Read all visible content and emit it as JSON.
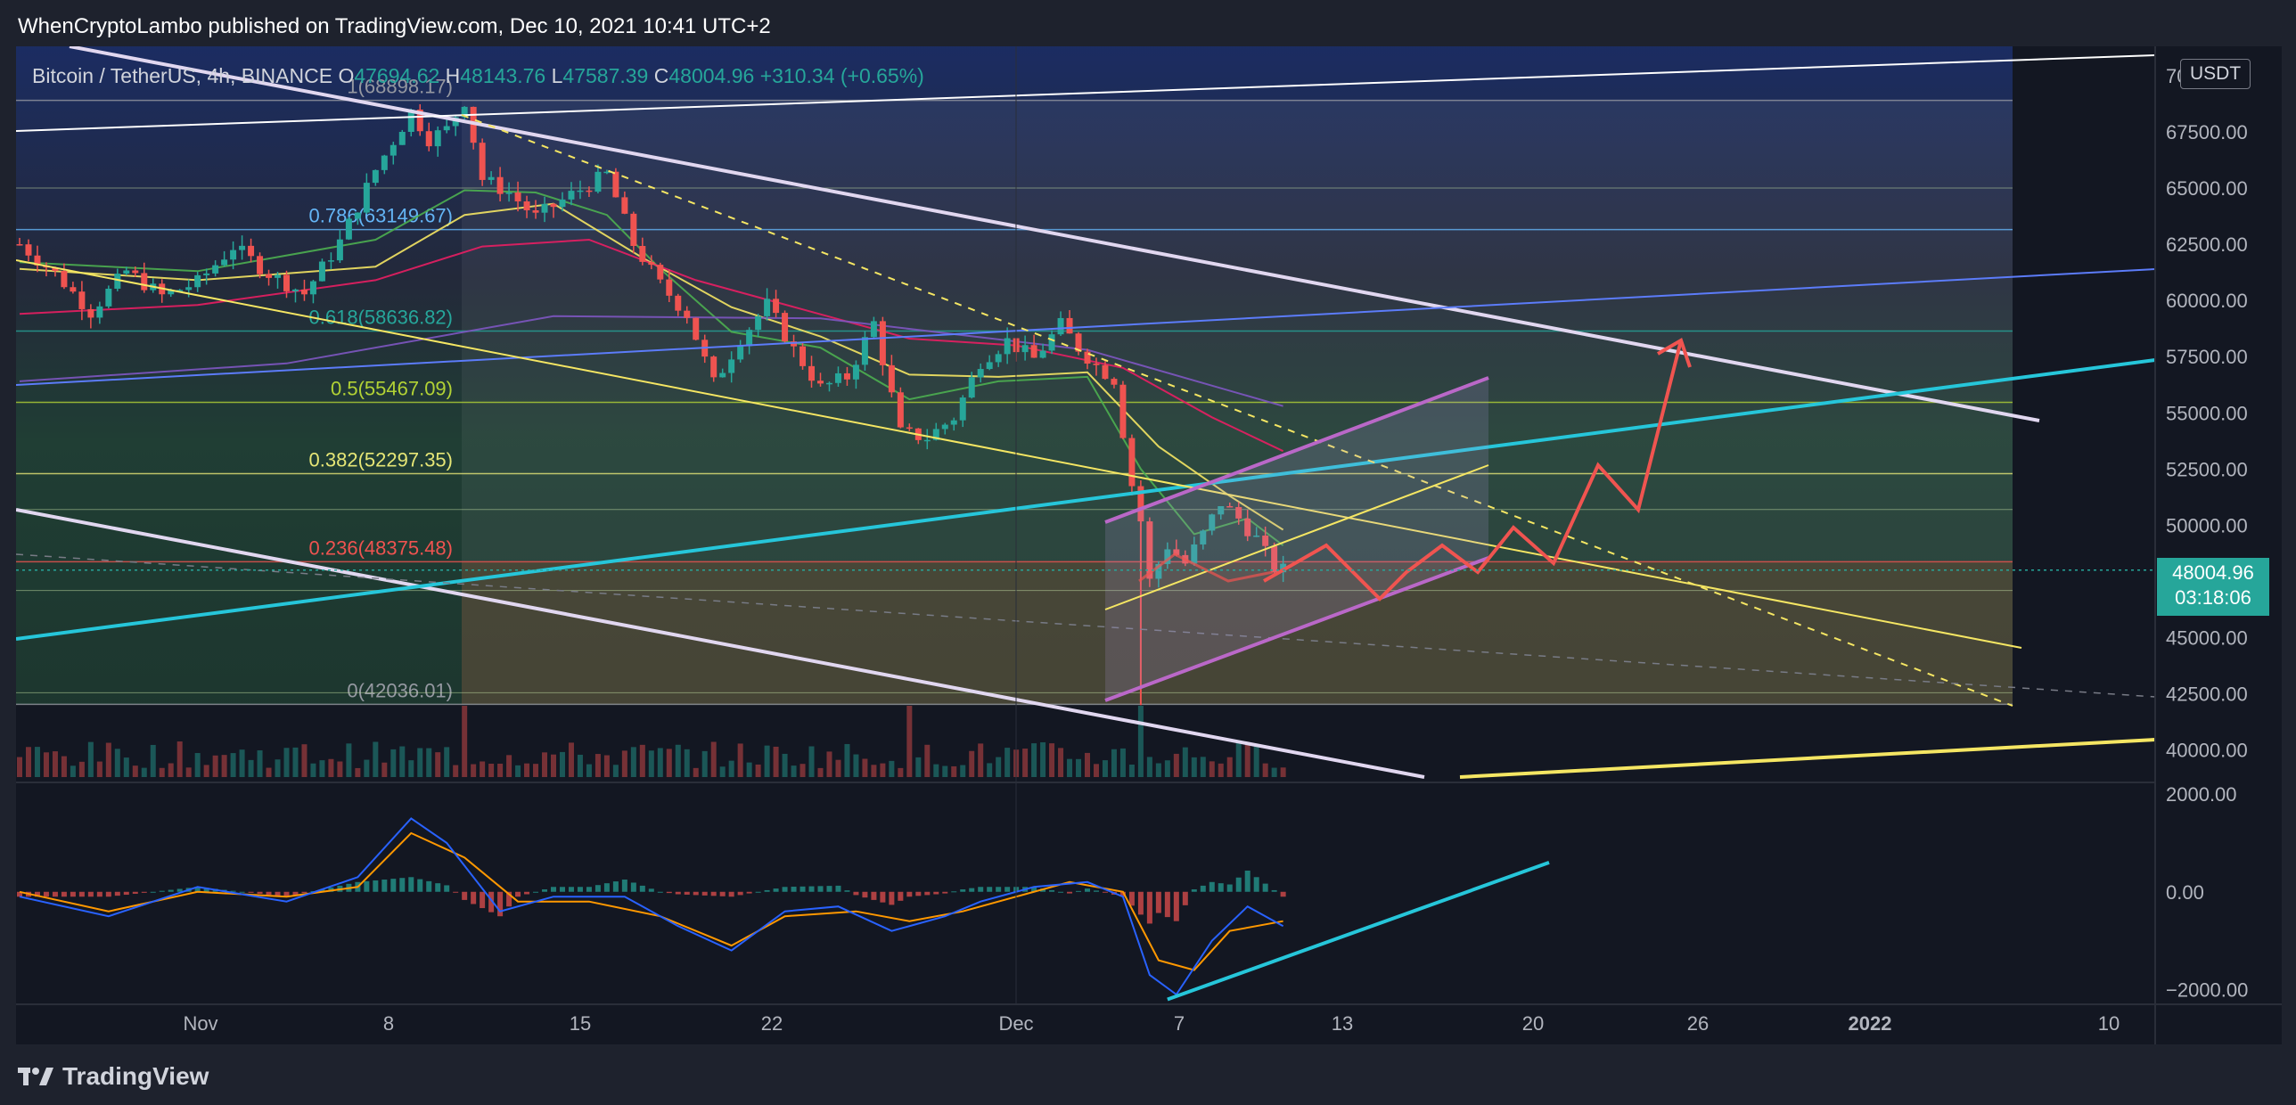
{
  "header": {
    "publisher": "WhenCryptoLambo published on TradingView.com, Dec 10, 2021 10:41 UTC+2"
  },
  "footer": {
    "brand": "TradingView"
  },
  "legend": {
    "symbol": "Bitcoin / TetherUS, 4h, BINANCE",
    "open_label": "O",
    "open": "47694.62",
    "high_label": "H",
    "high": "48143.76",
    "low_label": "L",
    "low": "47587.39",
    "close_label": "C",
    "close": "48004.96",
    "change": "+310.34 (+0.65%)"
  },
  "price_axis": {
    "unit": "USDT",
    "current_price": "48004.96",
    "countdown": "03:18:06",
    "ticks": [
      "70000.00",
      "67500.00",
      "65000.00",
      "62500.00",
      "60000.00",
      "57500.00",
      "55000.00",
      "52500.00",
      "50000.00",
      "47500.00",
      "45000.00",
      "42500.00",
      "40000.00"
    ]
  },
  "macd_axis": {
    "ticks": [
      "2000.00",
      "0.00",
      "−2000.00"
    ]
  },
  "colors": {
    "up": "#26a69a",
    "down": "#ef5350",
    "background": "#131722",
    "accent": "#2962ff"
  },
  "chart_data": {
    "type": "candlestick",
    "interval": "4h",
    "ylim": [
      38800,
      71300
    ],
    "date_axis": [
      "Nov",
      "8",
      "15",
      "22",
      "Dec",
      "7",
      "13",
      "20",
      "26",
      "2022",
      "10"
    ],
    "fibonacci": [
      {
        "label": "1(68898.17)",
        "level": 68898.17,
        "color": "#9598a1"
      },
      {
        "label": "0.786(63149.67)",
        "level": 63149.67,
        "color": "#64b5f6"
      },
      {
        "label": "0.618(58636.82)",
        "level": 58636.82,
        "color": "#26a69a"
      },
      {
        "label": "0.5(55467.09)",
        "level": 55467.09,
        "color": "#b2d235"
      },
      {
        "label": "0.382(52297.35)",
        "level": 52297.35,
        "color": "#e6e676"
      },
      {
        "label": "0.236(48375.48)",
        "level": 48375.48,
        "color": "#ef5350"
      },
      {
        "label": "0(42036.01)",
        "level": 42036.01,
        "color": "#9598a1"
      }
    ],
    "series": [
      {
        "values": [
          [
            0,
            62500
          ],
          [
            4,
            61200
          ],
          [
            8,
            59500
          ],
          [
            12,
            61300
          ],
          [
            16,
            60200
          ],
          [
            20,
            60800
          ],
          [
            24,
            62400
          ],
          [
            28,
            61200
          ],
          [
            32,
            60300
          ],
          [
            36,
            62600
          ],
          [
            40,
            65800
          ],
          [
            44,
            68400
          ],
          [
            46,
            67200
          ],
          [
            48,
            67600
          ],
          [
            50,
            68900
          ],
          [
            52,
            65400
          ],
          [
            55,
            64800
          ],
          [
            58,
            63700
          ],
          [
            62,
            64700
          ],
          [
            66,
            65600
          ],
          [
            69,
            62500
          ],
          [
            72,
            60700
          ],
          [
            75,
            59400
          ],
          [
            78,
            56300
          ],
          [
            81,
            58300
          ],
          [
            84,
            59800
          ],
          [
            87,
            57800
          ],
          [
            90,
            56100
          ],
          [
            93,
            56600
          ],
          [
            96,
            59000
          ],
          [
            99,
            54100
          ],
          [
            102,
            53900
          ],
          [
            105,
            54800
          ],
          [
            108,
            57300
          ],
          [
            111,
            58200
          ],
          [
            114,
            57400
          ],
          [
            117,
            58900
          ],
          [
            119,
            57900
          ],
          [
            121,
            57100
          ],
          [
            123,
            56500
          ],
          [
            125,
            51800
          ],
          [
            126,
            50200
          ],
          [
            127,
            47500
          ],
          [
            129,
            49100
          ],
          [
            131,
            48300
          ],
          [
            133,
            49600
          ],
          [
            135,
            51000
          ],
          [
            137,
            50300
          ],
          [
            139,
            49400
          ],
          [
            141,
            48100
          ],
          [
            142,
            48005
          ]
        ],
        "x_end": 142,
        "x_max": 240
      }
    ],
    "moving_averages": [
      {
        "color": "#4caf50",
        "values": [
          [
            0,
            61700
          ],
          [
            20,
            61300
          ],
          [
            40,
            62700
          ],
          [
            50,
            64900
          ],
          [
            58,
            64800
          ],
          [
            66,
            63800
          ],
          [
            72,
            61400
          ],
          [
            80,
            58600
          ],
          [
            90,
            57900
          ],
          [
            100,
            55600
          ],
          [
            110,
            56400
          ],
          [
            120,
            56600
          ],
          [
            126,
            52500
          ],
          [
            132,
            49600
          ],
          [
            138,
            50300
          ],
          [
            142,
            49100
          ]
        ]
      },
      {
        "color": "#f5e663",
        "values": [
          [
            0,
            61400
          ],
          [
            20,
            60900
          ],
          [
            40,
            61500
          ],
          [
            50,
            63800
          ],
          [
            60,
            64300
          ],
          [
            70,
            61900
          ],
          [
            80,
            59700
          ],
          [
            90,
            58400
          ],
          [
            100,
            56700
          ],
          [
            110,
            56600
          ],
          [
            120,
            56800
          ],
          [
            128,
            53500
          ],
          [
            136,
            51300
          ],
          [
            142,
            49800
          ]
        ]
      },
      {
        "color": "#e91e63",
        "values": [
          [
            0,
            59400
          ],
          [
            20,
            59800
          ],
          [
            40,
            60900
          ],
          [
            52,
            62400
          ],
          [
            64,
            62700
          ],
          [
            76,
            60900
          ],
          [
            88,
            59600
          ],
          [
            100,
            58300
          ],
          [
            112,
            58000
          ],
          [
            124,
            57000
          ],
          [
            134,
            54800
          ],
          [
            142,
            53300
          ]
        ]
      },
      {
        "color": "#7e57c2",
        "values": [
          [
            0,
            56400
          ],
          [
            30,
            57200
          ],
          [
            60,
            59300
          ],
          [
            90,
            59200
          ],
          [
            120,
            57800
          ],
          [
            142,
            55300
          ]
        ]
      }
    ],
    "macd": {
      "macd_line": [
        [
          0,
          -100
        ],
        [
          10,
          -500
        ],
        [
          20,
          100
        ],
        [
          30,
          -200
        ],
        [
          38,
          300
        ],
        [
          44,
          1500
        ],
        [
          48,
          1000
        ],
        [
          54,
          -400
        ],
        [
          60,
          -100
        ],
        [
          68,
          -100
        ],
        [
          74,
          -700
        ],
        [
          80,
          -1200
        ],
        [
          86,
          -400
        ],
        [
          92,
          -300
        ],
        [
          98,
          -800
        ],
        [
          104,
          -500
        ],
        [
          108,
          -200
        ],
        [
          114,
          100
        ],
        [
          120,
          200
        ],
        [
          124,
          -100
        ],
        [
          127,
          -1700
        ],
        [
          130,
          -2100
        ],
        [
          134,
          -1000
        ],
        [
          138,
          -300
        ],
        [
          142,
          -700
        ]
      ],
      "signal_line": [
        [
          0,
          0
        ],
        [
          10,
          -400
        ],
        [
          20,
          0
        ],
        [
          30,
          -100
        ],
        [
          38,
          100
        ],
        [
          44,
          1200
        ],
        [
          50,
          700
        ],
        [
          56,
          -200
        ],
        [
          64,
          -200
        ],
        [
          72,
          -500
        ],
        [
          80,
          -1100
        ],
        [
          86,
          -500
        ],
        [
          94,
          -400
        ],
        [
          100,
          -600
        ],
        [
          106,
          -400
        ],
        [
          112,
          -100
        ],
        [
          118,
          200
        ],
        [
          124,
          0
        ],
        [
          128,
          -1400
        ],
        [
          132,
          -1600
        ],
        [
          136,
          -800
        ],
        [
          142,
          -600
        ]
      ],
      "range": [
        -2300,
        2200
      ]
    }
  }
}
